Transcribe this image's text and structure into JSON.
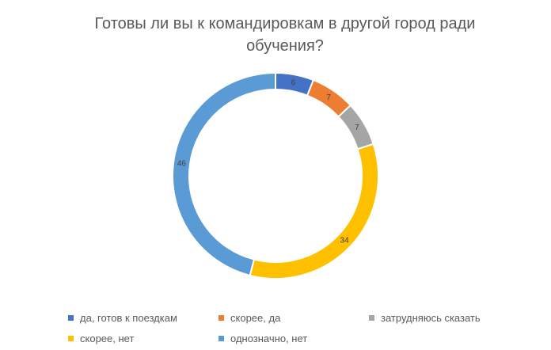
{
  "chart_data": {
    "type": "donut",
    "title": "Готовы ли вы к командировкам в другой город ради обучения?",
    "categories": [
      "да, готов к поездкам",
      "скорее, да",
      "затрудняюсь сказать",
      "скорее, нет",
      "однозначно, нет"
    ],
    "values": [
      6,
      7,
      7,
      34,
      46
    ],
    "colors": [
      "#4472c4",
      "#ed7d31",
      "#a5a5a5",
      "#ffc000",
      "#5b9bd5"
    ]
  }
}
